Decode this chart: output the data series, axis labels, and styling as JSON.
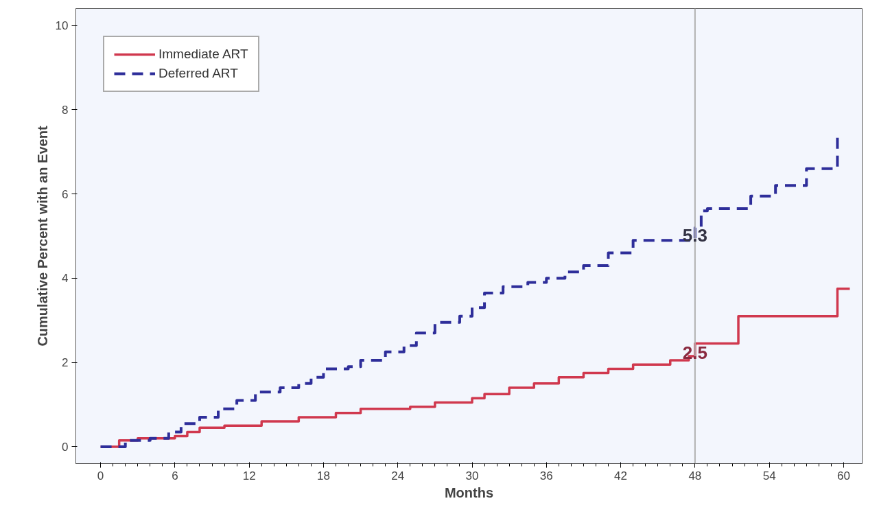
{
  "chart_data": {
    "type": "step",
    "xlabel": "Months",
    "ylabel": "Cumulative Percent with an Event",
    "xlim": [
      -2,
      61.5
    ],
    "ylim": [
      -0.4,
      10.4
    ],
    "xticks": [
      0,
      6,
      12,
      18,
      24,
      30,
      36,
      42,
      48,
      54,
      60
    ],
    "yticks": [
      0,
      2,
      4,
      6,
      8,
      10
    ],
    "grid": false,
    "legend": "top left",
    "marker": "none",
    "series": [
      {
        "name": "Immediate ART",
        "color": "#d0384e",
        "line_style": "solid",
        "x": [
          0,
          1.5,
          3,
          6,
          7,
          8,
          10,
          13,
          16,
          19,
          21,
          25,
          27,
          30,
          31,
          33,
          35,
          37,
          39,
          41,
          43,
          46,
          47.5,
          48,
          51.5,
          59.5,
          60.5
        ],
        "values": [
          0,
          0.15,
          0.2,
          0.25,
          0.35,
          0.45,
          0.5,
          0.6,
          0.7,
          0.8,
          0.9,
          0.95,
          1.05,
          1.15,
          1.25,
          1.4,
          1.5,
          1.65,
          1.75,
          1.85,
          1.95,
          2.05,
          2.15,
          2.45,
          3.1,
          3.75,
          3.75
        ]
      },
      {
        "name": "Deferred ART",
        "color": "#2e2e9a",
        "line_style": "dashed",
        "x": [
          0,
          2,
          4,
          5.5,
          6.5,
          8,
          9.5,
          11,
          12.5,
          14.5,
          16,
          17,
          18,
          20,
          21,
          23,
          24.5,
          25.5,
          27,
          29,
          30,
          31,
          32.5,
          34.5,
          36,
          37.5,
          39,
          41,
          43,
          48,
          48.5,
          49,
          52.5,
          54.5,
          57,
          59.5
        ],
        "values": [
          0,
          0.15,
          0.2,
          0.35,
          0.55,
          0.7,
          0.9,
          1.1,
          1.3,
          1.4,
          1.5,
          1.65,
          1.85,
          1.9,
          2.05,
          2.25,
          2.4,
          2.7,
          2.95,
          3.1,
          3.3,
          3.65,
          3.8,
          3.9,
          4.0,
          4.15,
          4.3,
          4.6,
          4.9,
          5.2,
          5.6,
          5.65,
          5.95,
          6.2,
          6.6,
          7.4
        ]
      }
    ],
    "ref_lines": [
      {
        "axis": "x",
        "value": 48,
        "color": "#b0b0b0"
      }
    ],
    "annotations": [
      {
        "text": "5.3",
        "x": 48,
        "y": 5.3
      },
      {
        "text": "2.5",
        "x": 48,
        "y": 2.5
      }
    ]
  }
}
